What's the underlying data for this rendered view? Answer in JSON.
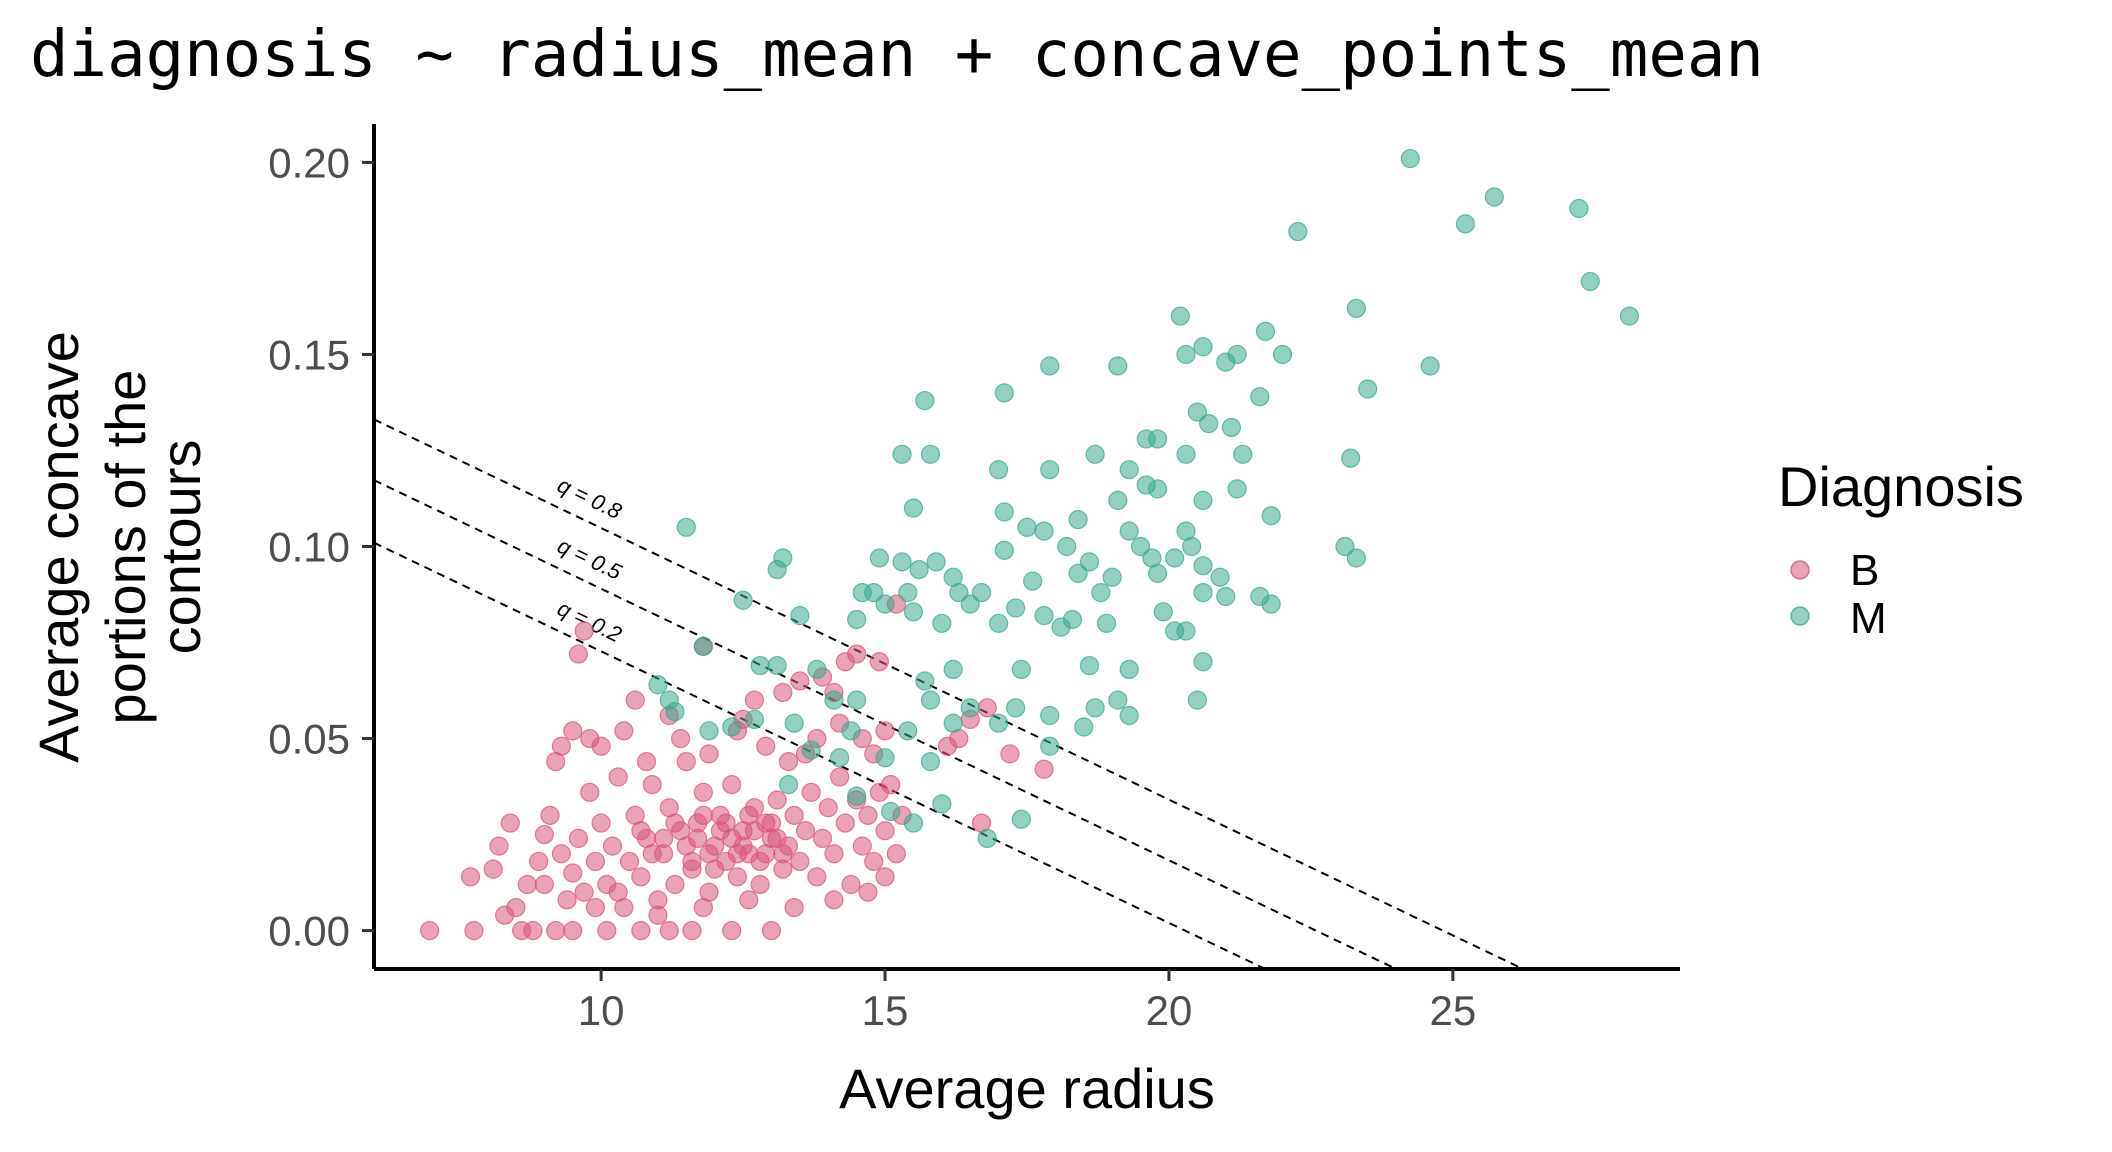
{
  "chart_data": {
    "type": "scatter",
    "title": "diagnosis ~ radius_mean + concave_points_mean",
    "xlabel": "Average radius",
    "ylabel": [
      "Average concave",
      "portions of the",
      "contours"
    ],
    "xlim": [
      6,
      29
    ],
    "ylim": [
      -0.01,
      0.21
    ],
    "x_ticks": [
      10,
      15,
      20,
      25
    ],
    "x_tick_labels": [
      "10",
      "15",
      "20",
      "25"
    ],
    "y_ticks": [
      0,
      0.05,
      0.1,
      0.15,
      0.2
    ],
    "y_tick_labels": [
      "0.00",
      "0.05",
      "0.10",
      "0.15",
      "0.20"
    ],
    "grid": false,
    "legend": {
      "title": "Diagnosis",
      "placement": "right"
    },
    "series": [
      {
        "name": "B",
        "color": "#d9557a",
        "points": [
          [
            6.98,
            0.0
          ],
          [
            7.76,
            0.0
          ],
          [
            8.6,
            0.0
          ],
          [
            8.8,
            0.0
          ],
          [
            9.2,
            0.0
          ],
          [
            9.5,
            0.0
          ],
          [
            10.1,
            0.0
          ],
          [
            10.7,
            0.0
          ],
          [
            11.2,
            0.0
          ],
          [
            11.6,
            0.0
          ],
          [
            12.3,
            0.0
          ],
          [
            13.0,
            0.0
          ],
          [
            7.7,
            0.014
          ],
          [
            8.2,
            0.022
          ],
          [
            8.5,
            0.006
          ],
          [
            8.7,
            0.012
          ],
          [
            8.9,
            0.018
          ],
          [
            9.0,
            0.025
          ],
          [
            9.1,
            0.03
          ],
          [
            9.2,
            0.044
          ],
          [
            9.3,
            0.02
          ],
          [
            9.4,
            0.008
          ],
          [
            9.5,
            0.015
          ],
          [
            9.6,
            0.024
          ],
          [
            9.7,
            0.01
          ],
          [
            9.8,
            0.036
          ],
          [
            9.9,
            0.018
          ],
          [
            10.0,
            0.028
          ],
          [
            10.1,
            0.012
          ],
          [
            10.2,
            0.022
          ],
          [
            10.3,
            0.04
          ],
          [
            10.4,
            0.006
          ],
          [
            10.5,
            0.018
          ],
          [
            10.6,
            0.03
          ],
          [
            10.7,
            0.014
          ],
          [
            10.8,
            0.024
          ],
          [
            10.9,
            0.038
          ],
          [
            11.0,
            0.008
          ],
          [
            11.1,
            0.02
          ],
          [
            11.2,
            0.032
          ],
          [
            11.3,
            0.012
          ],
          [
            11.4,
            0.026
          ],
          [
            11.5,
            0.044
          ],
          [
            11.6,
            0.016
          ],
          [
            11.7,
            0.028
          ],
          [
            11.8,
            0.036
          ],
          [
            11.9,
            0.01
          ],
          [
            12.0,
            0.022
          ],
          [
            12.1,
            0.03
          ],
          [
            12.2,
            0.018
          ],
          [
            12.3,
            0.038
          ],
          [
            12.4,
            0.014
          ],
          [
            12.5,
            0.026
          ],
          [
            12.6,
            0.02
          ],
          [
            12.7,
            0.032
          ],
          [
            12.8,
            0.012
          ],
          [
            12.9,
            0.028
          ],
          [
            13.0,
            0.024
          ],
          [
            13.1,
            0.034
          ],
          [
            13.2,
            0.016
          ],
          [
            13.3,
            0.022
          ],
          [
            13.4,
            0.03
          ],
          [
            13.5,
            0.018
          ],
          [
            13.6,
            0.026
          ],
          [
            13.7,
            0.036
          ],
          [
            13.8,
            0.014
          ],
          [
            13.9,
            0.024
          ],
          [
            14.0,
            0.032
          ],
          [
            14.1,
            0.02
          ],
          [
            14.2,
            0.04
          ],
          [
            14.3,
            0.028
          ],
          [
            14.4,
            0.012
          ],
          [
            14.5,
            0.034
          ],
          [
            14.6,
            0.022
          ],
          [
            14.7,
            0.03
          ],
          [
            14.8,
            0.018
          ],
          [
            14.9,
            0.036
          ],
          [
            15.0,
            0.026
          ],
          [
            11.5,
            0.022
          ],
          [
            11.7,
            0.024
          ],
          [
            11.9,
            0.02
          ],
          [
            12.1,
            0.026
          ],
          [
            12.3,
            0.024
          ],
          [
            12.5,
            0.022
          ],
          [
            12.7,
            0.026
          ],
          [
            12.9,
            0.02
          ],
          [
            13.1,
            0.024
          ],
          [
            11.8,
            0.03
          ],
          [
            12.2,
            0.028
          ],
          [
            12.6,
            0.03
          ],
          [
            13.0,
            0.028
          ],
          [
            11.6,
            0.018
          ],
          [
            12.0,
            0.016
          ],
          [
            12.4,
            0.02
          ],
          [
            12.8,
            0.018
          ],
          [
            13.2,
            0.02
          ],
          [
            11.3,
            0.028
          ],
          [
            11.1,
            0.024
          ],
          [
            10.9,
            0.02
          ],
          [
            10.7,
            0.026
          ],
          [
            9.3,
            0.048
          ],
          [
            9.5,
            0.052
          ],
          [
            9.6,
            0.072
          ],
          [
            9.7,
            0.078
          ],
          [
            10.6,
            0.06
          ],
          [
            11.2,
            0.056
          ],
          [
            11.8,
            0.074
          ],
          [
            12.5,
            0.055
          ],
          [
            12.7,
            0.06
          ],
          [
            13.2,
            0.062
          ],
          [
            13.5,
            0.065
          ],
          [
            13.9,
            0.066
          ],
          [
            14.1,
            0.062
          ],
          [
            14.3,
            0.07
          ],
          [
            14.5,
            0.072
          ],
          [
            14.9,
            0.07
          ],
          [
            15.0,
            0.052
          ],
          [
            15.2,
            0.085
          ],
          [
            16.5,
            0.055
          ],
          [
            16.8,
            0.058
          ],
          [
            17.2,
            0.046
          ],
          [
            17.8,
            0.042
          ],
          [
            16.1,
            0.048
          ],
          [
            16.3,
            0.05
          ],
          [
            16.7,
            0.028
          ],
          [
            15.3,
            0.03
          ],
          [
            15.1,
            0.038
          ],
          [
            14.8,
            0.046
          ],
          [
            14.6,
            0.05
          ],
          [
            14.2,
            0.054
          ],
          [
            13.8,
            0.05
          ],
          [
            13.6,
            0.046
          ],
          [
            13.3,
            0.044
          ],
          [
            12.9,
            0.048
          ],
          [
            12.4,
            0.052
          ],
          [
            11.9,
            0.046
          ],
          [
            11.4,
            0.05
          ],
          [
            10.8,
            0.044
          ],
          [
            10.4,
            0.052
          ],
          [
            10.0,
            0.048
          ],
          [
            9.8,
            0.05
          ],
          [
            8.1,
            0.016
          ],
          [
            8.4,
            0.028
          ],
          [
            8.3,
            0.004
          ],
          [
            9.0,
            0.012
          ],
          [
            9.9,
            0.006
          ],
          [
            10.3,
            0.01
          ],
          [
            11.0,
            0.004
          ],
          [
            11.8,
            0.006
          ],
          [
            12.6,
            0.008
          ],
          [
            13.4,
            0.006
          ],
          [
            14.1,
            0.008
          ],
          [
            14.7,
            0.01
          ],
          [
            15.0,
            0.014
          ],
          [
            15.2,
            0.02
          ]
        ]
      },
      {
        "name": "M",
        "color": "#3aaa8f",
        "points": [
          [
            24.25,
            0.201
          ],
          [
            25.73,
            0.191
          ],
          [
            25.22,
            0.184
          ],
          [
            27.22,
            0.188
          ],
          [
            22.27,
            0.182
          ],
          [
            27.42,
            0.169
          ],
          [
            28.11,
            0.16
          ],
          [
            20.2,
            0.16
          ],
          [
            20.6,
            0.152
          ],
          [
            21.7,
            0.156
          ],
          [
            23.3,
            0.162
          ],
          [
            20.3,
            0.15
          ],
          [
            21.0,
            0.148
          ],
          [
            21.2,
            0.15
          ],
          [
            22.0,
            0.15
          ],
          [
            24.6,
            0.147
          ],
          [
            19.1,
            0.147
          ],
          [
            17.9,
            0.147
          ],
          [
            17.1,
            0.14
          ],
          [
            15.7,
            0.138
          ],
          [
            21.6,
            0.139
          ],
          [
            23.5,
            0.141
          ],
          [
            20.5,
            0.135
          ],
          [
            20.7,
            0.132
          ],
          [
            21.1,
            0.131
          ],
          [
            19.6,
            0.128
          ],
          [
            19.8,
            0.128
          ],
          [
            20.3,
            0.124
          ],
          [
            21.3,
            0.124
          ],
          [
            23.2,
            0.123
          ],
          [
            15.3,
            0.124
          ],
          [
            15.8,
            0.124
          ],
          [
            18.7,
            0.124
          ],
          [
            17.0,
            0.12
          ],
          [
            17.9,
            0.12
          ],
          [
            19.3,
            0.12
          ],
          [
            19.6,
            0.116
          ],
          [
            19.8,
            0.115
          ],
          [
            21.2,
            0.115
          ],
          [
            19.1,
            0.112
          ],
          [
            20.6,
            0.112
          ],
          [
            15.5,
            0.11
          ],
          [
            17.1,
            0.109
          ],
          [
            21.8,
            0.108
          ],
          [
            18.4,
            0.107
          ],
          [
            17.5,
            0.105
          ],
          [
            17.8,
            0.104
          ],
          [
            19.3,
            0.104
          ],
          [
            20.3,
            0.104
          ],
          [
            11.5,
            0.105
          ],
          [
            20.4,
            0.1
          ],
          [
            23.1,
            0.1
          ],
          [
            23.3,
            0.097
          ],
          [
            17.1,
            0.099
          ],
          [
            18.2,
            0.1
          ],
          [
            19.5,
            0.1
          ],
          [
            19.7,
            0.097
          ],
          [
            20.1,
            0.097
          ],
          [
            18.6,
            0.096
          ],
          [
            15.9,
            0.096
          ],
          [
            15.3,
            0.096
          ],
          [
            14.9,
            0.097
          ],
          [
            13.2,
            0.097
          ],
          [
            13.1,
            0.094
          ],
          [
            15.6,
            0.094
          ],
          [
            16.2,
            0.092
          ],
          [
            17.6,
            0.091
          ],
          [
            18.4,
            0.093
          ],
          [
            19.0,
            0.092
          ],
          [
            19.8,
            0.093
          ],
          [
            20.6,
            0.095
          ],
          [
            20.9,
            0.092
          ],
          [
            21.0,
            0.087
          ],
          [
            21.6,
            0.087
          ],
          [
            14.6,
            0.088
          ],
          [
            14.8,
            0.088
          ],
          [
            15.4,
            0.088
          ],
          [
            16.3,
            0.088
          ],
          [
            16.7,
            0.088
          ],
          [
            18.8,
            0.088
          ],
          [
            20.6,
            0.088
          ],
          [
            21.8,
            0.085
          ],
          [
            12.5,
            0.086
          ],
          [
            15.0,
            0.085
          ],
          [
            15.5,
            0.083
          ],
          [
            16.5,
            0.085
          ],
          [
            17.3,
            0.084
          ],
          [
            17.8,
            0.082
          ],
          [
            18.3,
            0.081
          ],
          [
            19.9,
            0.083
          ],
          [
            20.3,
            0.078
          ],
          [
            13.5,
            0.082
          ],
          [
            14.5,
            0.081
          ],
          [
            16.0,
            0.08
          ],
          [
            17.0,
            0.08
          ],
          [
            18.1,
            0.079
          ],
          [
            18.9,
            0.08
          ],
          [
            20.1,
            0.078
          ],
          [
            11.8,
            0.074
          ],
          [
            12.8,
            0.069
          ],
          [
            13.8,
            0.068
          ],
          [
            15.7,
            0.065
          ],
          [
            16.2,
            0.068
          ],
          [
            17.4,
            0.068
          ],
          [
            18.6,
            0.069
          ],
          [
            19.3,
            0.068
          ],
          [
            20.6,
            0.07
          ],
          [
            13.1,
            0.069
          ],
          [
            14.1,
            0.06
          ],
          [
            14.5,
            0.06
          ],
          [
            15.8,
            0.06
          ],
          [
            16.5,
            0.058
          ],
          [
            17.3,
            0.058
          ],
          [
            18.7,
            0.058
          ],
          [
            19.1,
            0.06
          ],
          [
            20.5,
            0.06
          ],
          [
            11.2,
            0.06
          ],
          [
            11.9,
            0.052
          ],
          [
            12.7,
            0.055
          ],
          [
            13.4,
            0.054
          ],
          [
            14.4,
            0.052
          ],
          [
            15.4,
            0.052
          ],
          [
            16.2,
            0.054
          ],
          [
            17.0,
            0.054
          ],
          [
            17.9,
            0.056
          ],
          [
            18.5,
            0.053
          ],
          [
            19.3,
            0.056
          ],
          [
            12.3,
            0.053
          ],
          [
            11.3,
            0.057
          ],
          [
            13.7,
            0.047
          ],
          [
            14.2,
            0.045
          ],
          [
            15.0,
            0.045
          ],
          [
            15.8,
            0.044
          ],
          [
            17.9,
            0.048
          ],
          [
            11.0,
            0.064
          ],
          [
            13.3,
            0.038
          ],
          [
            14.5,
            0.035
          ],
          [
            15.1,
            0.031
          ],
          [
            15.5,
            0.028
          ],
          [
            16.0,
            0.033
          ],
          [
            16.8,
            0.024
          ],
          [
            17.4,
            0.029
          ]
        ]
      }
    ],
    "reference_lines": [
      {
        "label": "q = 0.8",
        "intercept": 0.1755,
        "slope": -0.00707
      },
      {
        "label": "q = 0.5",
        "intercept": 0.1597,
        "slope": -0.00707
      },
      {
        "label": "q = 0.2",
        "intercept": 0.1434,
        "slope": -0.00707
      }
    ]
  }
}
